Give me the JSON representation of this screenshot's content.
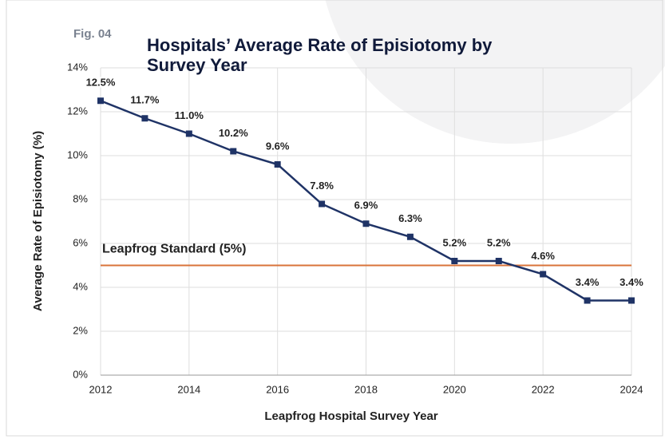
{
  "chart_data": {
    "type": "line",
    "figure_label": "Fig. 04",
    "title": "Hospitals’ Average Rate of Episiotomy by Survey Year",
    "xlabel": "Leapfrog Hospital Survey Year",
    "ylabel": "Average Rate of Episiotomy (%)",
    "x": [
      2012,
      2013,
      2014,
      2015,
      2016,
      2017,
      2018,
      2019,
      2020,
      2021,
      2022,
      2023,
      2024
    ],
    "series": [
      {
        "name": "Average Rate of Episiotomy",
        "color": "#1f3366",
        "values": [
          12.5,
          11.7,
          11.0,
          10.2,
          9.6,
          7.8,
          6.9,
          6.3,
          5.2,
          5.2,
          4.6,
          3.4,
          3.4
        ],
        "value_labels": [
          "12.5%",
          "11.7%",
          "11.0%",
          "10.2%",
          "9.6%",
          "7.8%",
          "6.9%",
          "6.3%",
          "5.2%",
          "5.2%",
          "4.6%",
          "3.4%",
          "3.4%"
        ]
      }
    ],
    "reference_line": {
      "label": "Leapfrog Standard (5%)",
      "value": 5,
      "color": "#d9733a"
    },
    "xlim": [
      2012,
      2024
    ],
    "xticks": [
      2012,
      2014,
      2016,
      2018,
      2020,
      2022,
      2024
    ],
    "ylim": [
      0,
      14
    ],
    "yticks": [
      {
        "value": 0,
        "label": "0%"
      },
      {
        "value": 2,
        "label": "2%"
      },
      {
        "value": 4,
        "label": "4%"
      },
      {
        "value": 6,
        "label": "6%"
      },
      {
        "value": 8,
        "label": "8%"
      },
      {
        "value": 10,
        "label": "10%"
      },
      {
        "value": 12,
        "label": "12%"
      },
      {
        "value": 14,
        "label": "14%"
      }
    ],
    "grid": true
  }
}
